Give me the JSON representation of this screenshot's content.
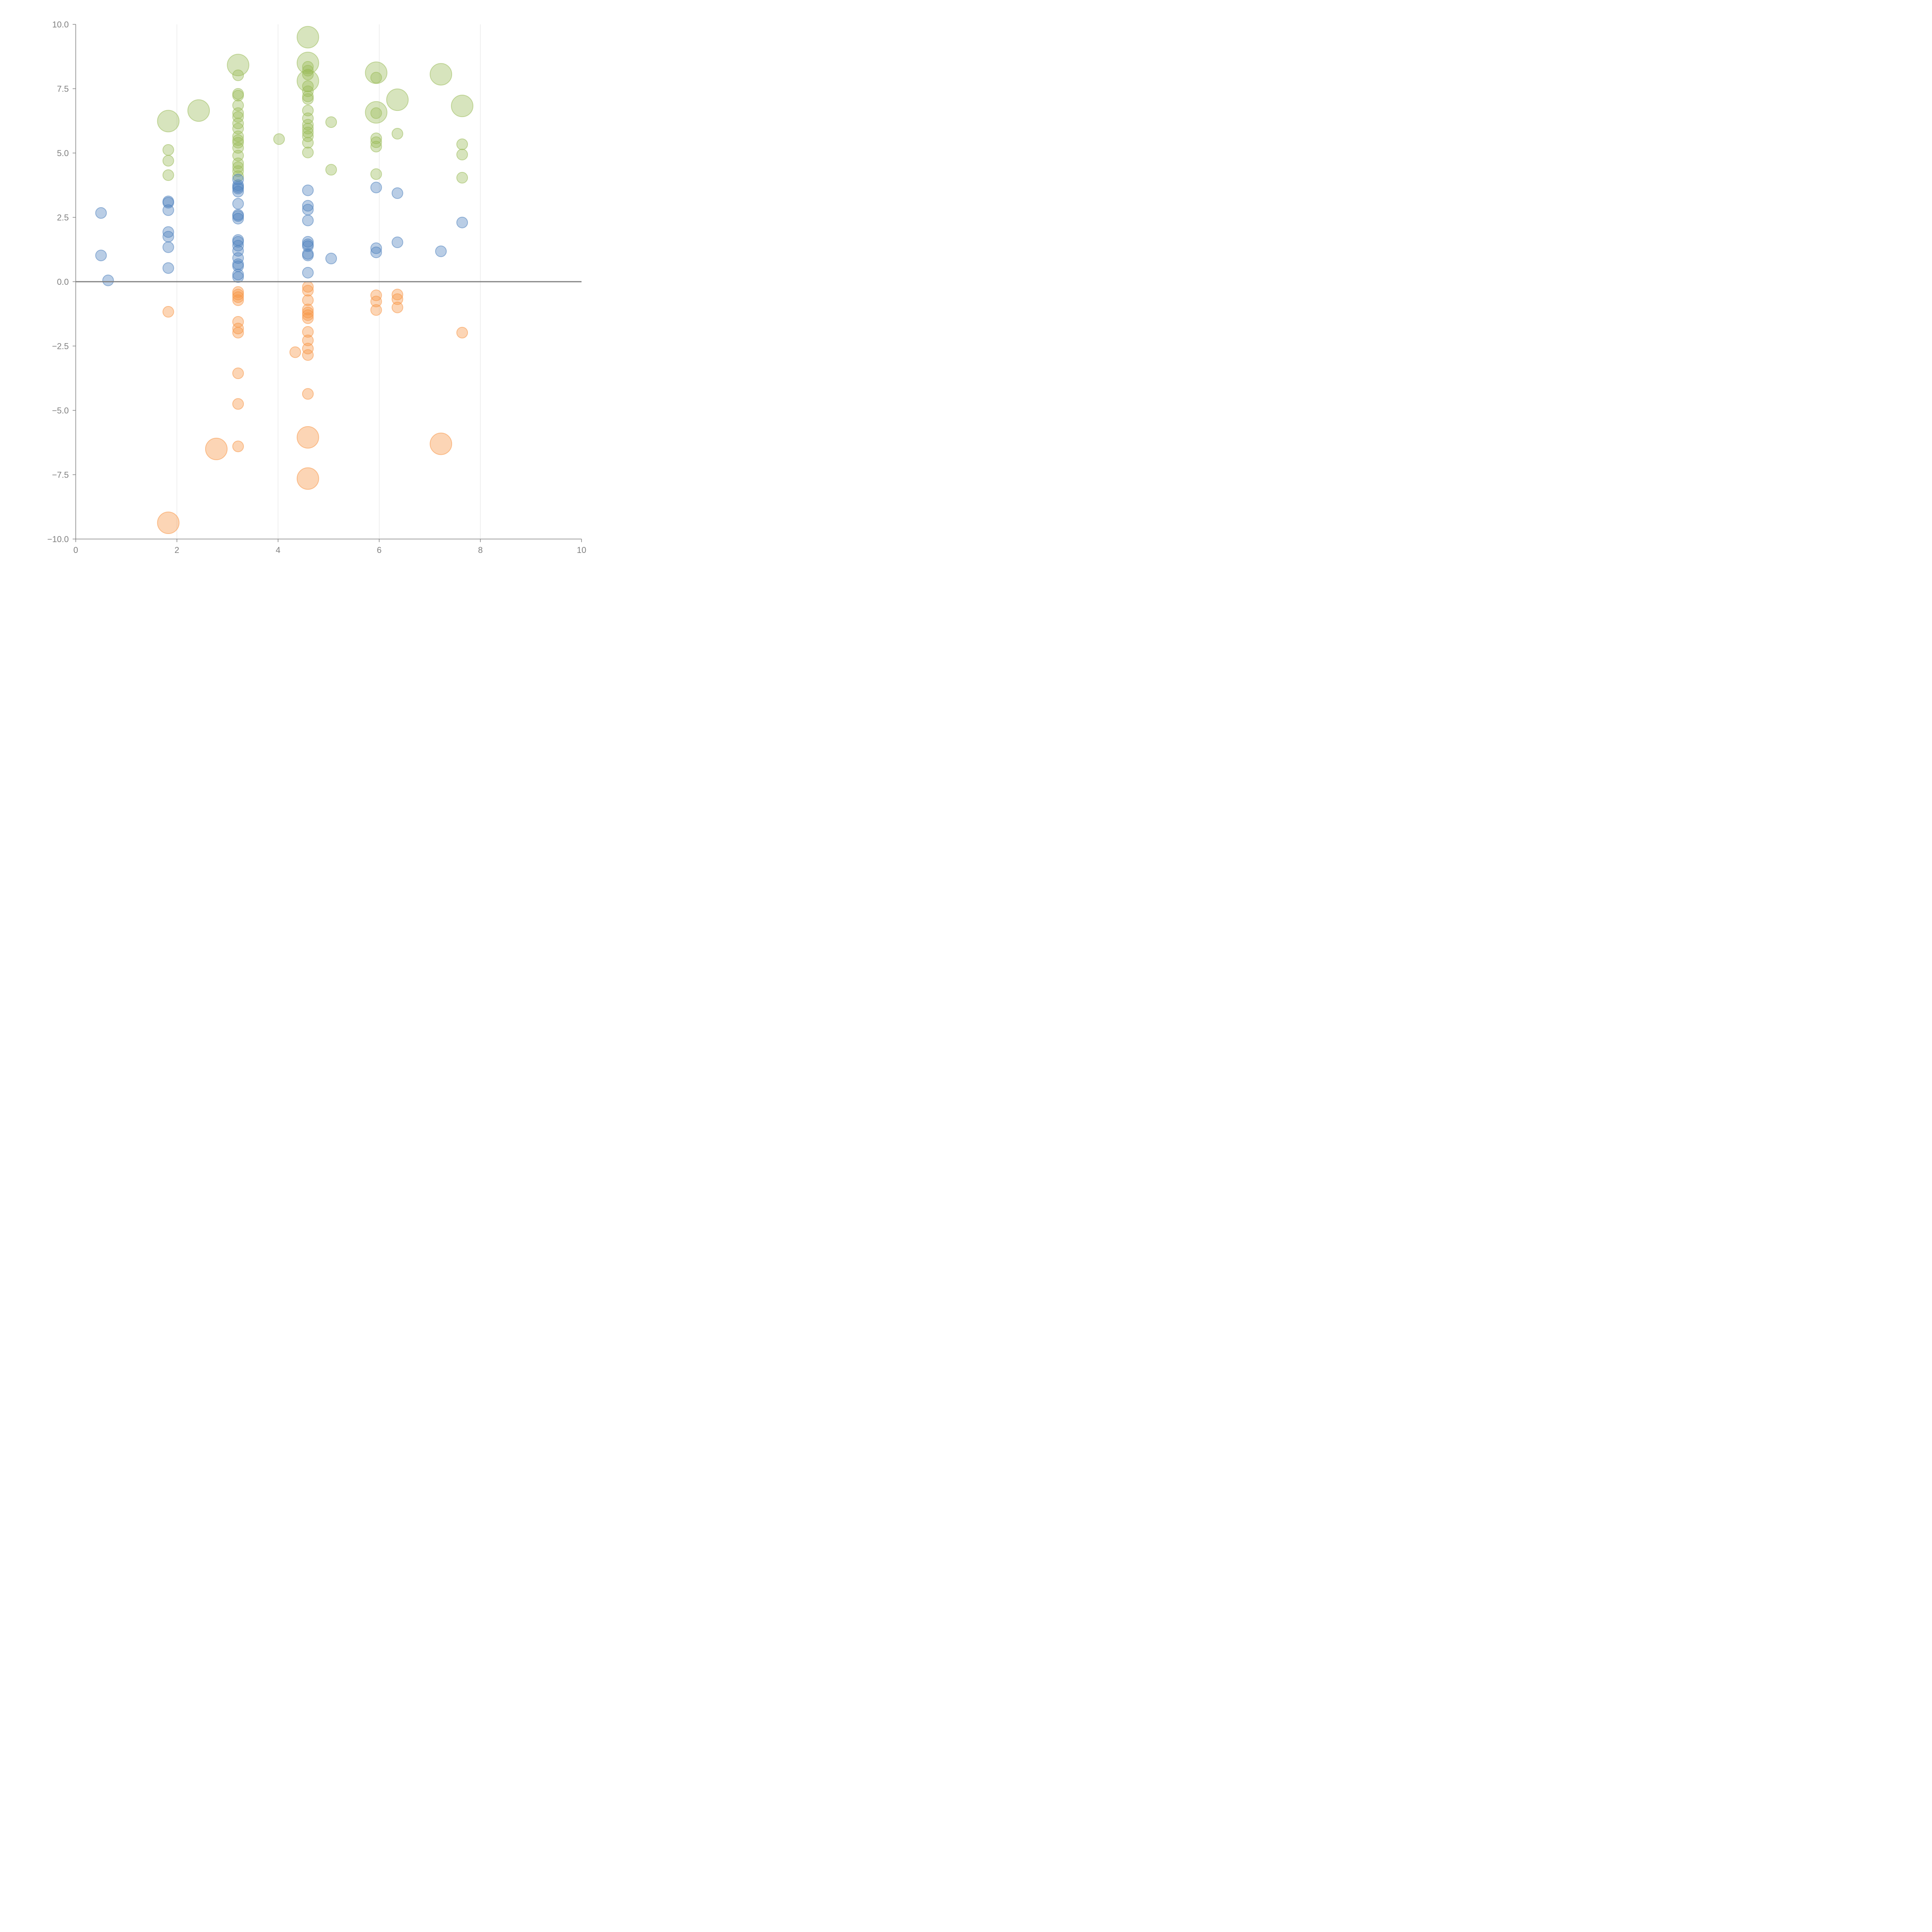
{
  "chart_data": {
    "type": "scatter",
    "title": "",
    "xlabel": "",
    "ylabel": "",
    "xlim": [
      0,
      10
    ],
    "ylim": [
      -10,
      10
    ],
    "grid": "vertical",
    "x_ticks": [
      "0",
      "2",
      "4",
      "6",
      "8",
      "10"
    ],
    "y_ticks": [
      "10.0",
      "7.5",
      "5.0",
      "2.5",
      "0.0",
      "−2.5",
      "−5.0",
      "−7.5",
      "−10.0"
    ],
    "reference_line_y": 0,
    "series": [
      {
        "name": "green",
        "color": "#9bbb59",
        "points": [
          {
            "x": 1.83,
            "y": 6.24,
            "size": "large"
          },
          {
            "x": 1.83,
            "y": 5.12,
            "size": "small"
          },
          {
            "x": 1.83,
            "y": 4.7,
            "size": "small"
          },
          {
            "x": 1.83,
            "y": 4.14,
            "size": "small"
          },
          {
            "x": 2.43,
            "y": 6.65,
            "size": "large"
          },
          {
            "x": 3.21,
            "y": 8.42,
            "size": "large"
          },
          {
            "x": 3.21,
            "y": 8.02,
            "size": "small"
          },
          {
            "x": 3.21,
            "y": 7.3,
            "size": "small"
          },
          {
            "x": 3.21,
            "y": 7.23,
            "size": "small"
          },
          {
            "x": 3.21,
            "y": 6.85,
            "size": "small"
          },
          {
            "x": 3.21,
            "y": 6.55,
            "size": "small"
          },
          {
            "x": 3.21,
            "y": 6.4,
            "size": "small"
          },
          {
            "x": 3.21,
            "y": 6.15,
            "size": "small"
          },
          {
            "x": 3.21,
            "y": 5.95,
            "size": "small"
          },
          {
            "x": 3.21,
            "y": 5.65,
            "size": "small"
          },
          {
            "x": 3.21,
            "y": 5.5,
            "size": "small"
          },
          {
            "x": 3.21,
            "y": 5.4,
            "size": "small"
          },
          {
            "x": 3.21,
            "y": 5.2,
            "size": "small"
          },
          {
            "x": 3.21,
            "y": 4.9,
            "size": "small"
          },
          {
            "x": 3.21,
            "y": 4.6,
            "size": "small"
          },
          {
            "x": 3.21,
            "y": 4.45,
            "size": "small"
          },
          {
            "x": 3.21,
            "y": 4.3,
            "size": "small"
          },
          {
            "x": 3.21,
            "y": 4.1,
            "size": "small"
          },
          {
            "x": 4.02,
            "y": 5.54,
            "size": "small"
          },
          {
            "x": 4.59,
            "y": 9.5,
            "size": "large"
          },
          {
            "x": 4.59,
            "y": 8.5,
            "size": "large"
          },
          {
            "x": 4.59,
            "y": 8.35,
            "size": "small"
          },
          {
            "x": 4.59,
            "y": 8.2,
            "size": "small"
          },
          {
            "x": 4.59,
            "y": 8.05,
            "size": "small"
          },
          {
            "x": 4.59,
            "y": 7.8,
            "size": "large"
          },
          {
            "x": 4.59,
            "y": 7.6,
            "size": "small"
          },
          {
            "x": 4.59,
            "y": 7.4,
            "size": "small"
          },
          {
            "x": 4.59,
            "y": 7.2,
            "size": "small"
          },
          {
            "x": 4.59,
            "y": 7.1,
            "size": "small"
          },
          {
            "x": 4.59,
            "y": 6.65,
            "size": "small"
          },
          {
            "x": 4.59,
            "y": 6.35,
            "size": "small"
          },
          {
            "x": 4.59,
            "y": 6.1,
            "size": "small"
          },
          {
            "x": 4.59,
            "y": 5.95,
            "size": "small"
          },
          {
            "x": 4.59,
            "y": 5.8,
            "size": "small"
          },
          {
            "x": 4.59,
            "y": 5.65,
            "size": "small"
          },
          {
            "x": 4.59,
            "y": 5.4,
            "size": "small"
          },
          {
            "x": 4.59,
            "y": 5.02,
            "size": "small"
          },
          {
            "x": 5.05,
            "y": 6.2,
            "size": "small"
          },
          {
            "x": 5.05,
            "y": 4.35,
            "size": "small"
          },
          {
            "x": 5.94,
            "y": 8.12,
            "size": "large"
          },
          {
            "x": 5.94,
            "y": 7.93,
            "size": "small"
          },
          {
            "x": 5.94,
            "y": 6.58,
            "size": "large"
          },
          {
            "x": 5.94,
            "y": 6.55,
            "size": "small"
          },
          {
            "x": 5.94,
            "y": 5.57,
            "size": "small"
          },
          {
            "x": 5.94,
            "y": 5.42,
            "size": "small"
          },
          {
            "x": 5.94,
            "y": 5.25,
            "size": "small"
          },
          {
            "x": 5.94,
            "y": 4.18,
            "size": "small"
          },
          {
            "x": 6.36,
            "y": 7.07,
            "size": "large"
          },
          {
            "x": 6.36,
            "y": 5.75,
            "size": "small"
          },
          {
            "x": 7.22,
            "y": 8.06,
            "size": "large"
          },
          {
            "x": 7.64,
            "y": 6.83,
            "size": "large"
          },
          {
            "x": 7.64,
            "y": 5.34,
            "size": "small"
          },
          {
            "x": 7.64,
            "y": 4.94,
            "size": "small"
          },
          {
            "x": 7.64,
            "y": 4.04,
            "size": "small"
          }
        ]
      },
      {
        "name": "blue",
        "color": "#4f81bd",
        "points": [
          {
            "x": 0.5,
            "y": 2.67,
            "size": "small"
          },
          {
            "x": 0.5,
            "y": 1.02,
            "size": "small"
          },
          {
            "x": 0.64,
            "y": 0.05,
            "size": "small"
          },
          {
            "x": 1.83,
            "y": 3.12,
            "size": "small"
          },
          {
            "x": 1.83,
            "y": 3.07,
            "size": "small"
          },
          {
            "x": 1.83,
            "y": 2.78,
            "size": "small"
          },
          {
            "x": 1.83,
            "y": 1.93,
            "size": "small"
          },
          {
            "x": 1.83,
            "y": 1.75,
            "size": "small"
          },
          {
            "x": 1.83,
            "y": 1.34,
            "size": "small"
          },
          {
            "x": 1.83,
            "y": 0.53,
            "size": "small"
          },
          {
            "x": 3.21,
            "y": 3.97,
            "size": "small"
          },
          {
            "x": 3.21,
            "y": 3.75,
            "size": "small"
          },
          {
            "x": 3.21,
            "y": 3.68,
            "size": "small"
          },
          {
            "x": 3.21,
            "y": 3.62,
            "size": "small"
          },
          {
            "x": 3.21,
            "y": 3.5,
            "size": "small"
          },
          {
            "x": 3.21,
            "y": 3.03,
            "size": "small"
          },
          {
            "x": 3.21,
            "y": 2.6,
            "size": "small"
          },
          {
            "x": 3.21,
            "y": 2.55,
            "size": "small"
          },
          {
            "x": 3.21,
            "y": 2.45,
            "size": "small"
          },
          {
            "x": 3.21,
            "y": 1.62,
            "size": "small"
          },
          {
            "x": 3.21,
            "y": 1.55,
            "size": "small"
          },
          {
            "x": 3.21,
            "y": 1.4,
            "size": "small"
          },
          {
            "x": 3.21,
            "y": 1.2,
            "size": "small"
          },
          {
            "x": 3.21,
            "y": 0.92,
            "size": "small"
          },
          {
            "x": 3.21,
            "y": 0.68,
            "size": "small"
          },
          {
            "x": 3.21,
            "y": 0.6,
            "size": "small"
          },
          {
            "x": 3.21,
            "y": 0.28,
            "size": "small"
          },
          {
            "x": 3.21,
            "y": 0.18,
            "size": "small"
          },
          {
            "x": 4.59,
            "y": 3.55,
            "size": "small"
          },
          {
            "x": 4.59,
            "y": 2.95,
            "size": "small"
          },
          {
            "x": 4.59,
            "y": 2.8,
            "size": "small"
          },
          {
            "x": 4.59,
            "y": 2.38,
            "size": "small"
          },
          {
            "x": 4.59,
            "y": 1.55,
            "size": "small"
          },
          {
            "x": 4.59,
            "y": 1.45,
            "size": "small"
          },
          {
            "x": 4.59,
            "y": 1.38,
            "size": "small"
          },
          {
            "x": 4.59,
            "y": 1.08,
            "size": "small"
          },
          {
            "x": 4.59,
            "y": 1.02,
            "size": "small"
          },
          {
            "x": 4.59,
            "y": 0.35,
            "size": "small"
          },
          {
            "x": 5.05,
            "y": 0.9,
            "size": "small"
          },
          {
            "x": 5.94,
            "y": 3.66,
            "size": "small"
          },
          {
            "x": 5.94,
            "y": 1.3,
            "size": "small"
          },
          {
            "x": 5.94,
            "y": 1.14,
            "size": "small"
          },
          {
            "x": 6.36,
            "y": 3.44,
            "size": "small"
          },
          {
            "x": 6.36,
            "y": 1.53,
            "size": "small"
          },
          {
            "x": 7.22,
            "y": 1.18,
            "size": "small"
          },
          {
            "x": 7.64,
            "y": 2.3,
            "size": "small"
          }
        ]
      },
      {
        "name": "orange",
        "color": "#f79646",
        "points": [
          {
            "x": 1.83,
            "y": -1.17,
            "size": "small"
          },
          {
            "x": 1.83,
            "y": -9.37,
            "size": "large"
          },
          {
            "x": 2.78,
            "y": -6.5,
            "size": "large"
          },
          {
            "x": 3.21,
            "y": -0.4,
            "size": "small"
          },
          {
            "x": 3.21,
            "y": -0.5,
            "size": "small"
          },
          {
            "x": 3.21,
            "y": -0.6,
            "size": "small"
          },
          {
            "x": 3.21,
            "y": -0.72,
            "size": "small"
          },
          {
            "x": 3.21,
            "y": -1.56,
            "size": "small"
          },
          {
            "x": 3.21,
            "y": -1.82,
            "size": "small"
          },
          {
            "x": 3.21,
            "y": -1.98,
            "size": "small"
          },
          {
            "x": 3.21,
            "y": -3.56,
            "size": "small"
          },
          {
            "x": 3.21,
            "y": -4.75,
            "size": "small"
          },
          {
            "x": 3.21,
            "y": -6.4,
            "size": "small"
          },
          {
            "x": 4.34,
            "y": -2.74,
            "size": "small"
          },
          {
            "x": 4.59,
            "y": -0.2,
            "size": "small"
          },
          {
            "x": 4.59,
            "y": -0.35,
            "size": "small"
          },
          {
            "x": 4.59,
            "y": -0.72,
            "size": "small"
          },
          {
            "x": 4.59,
            "y": -1.08,
            "size": "small"
          },
          {
            "x": 4.59,
            "y": -1.2,
            "size": "small"
          },
          {
            "x": 4.59,
            "y": -1.3,
            "size": "small"
          },
          {
            "x": 4.59,
            "y": -1.42,
            "size": "small"
          },
          {
            "x": 4.59,
            "y": -1.95,
            "size": "small"
          },
          {
            "x": 4.59,
            "y": -2.28,
            "size": "small"
          },
          {
            "x": 4.59,
            "y": -2.6,
            "size": "small"
          },
          {
            "x": 4.59,
            "y": -2.85,
            "size": "small"
          },
          {
            "x": 4.59,
            "y": -4.36,
            "size": "small"
          },
          {
            "x": 4.59,
            "y": -6.05,
            "size": "large"
          },
          {
            "x": 4.59,
            "y": -7.65,
            "size": "large"
          },
          {
            "x": 5.94,
            "y": -0.53,
            "size": "small"
          },
          {
            "x": 5.94,
            "y": -0.77,
            "size": "small"
          },
          {
            "x": 5.94,
            "y": -1.1,
            "size": "small"
          },
          {
            "x": 6.36,
            "y": -0.5,
            "size": "small"
          },
          {
            "x": 6.36,
            "y": -0.68,
            "size": "small"
          },
          {
            "x": 6.36,
            "y": -1.0,
            "size": "small"
          },
          {
            "x": 7.22,
            "y": -6.3,
            "size": "large"
          },
          {
            "x": 7.64,
            "y": -1.98,
            "size": "small"
          }
        ]
      }
    ]
  }
}
